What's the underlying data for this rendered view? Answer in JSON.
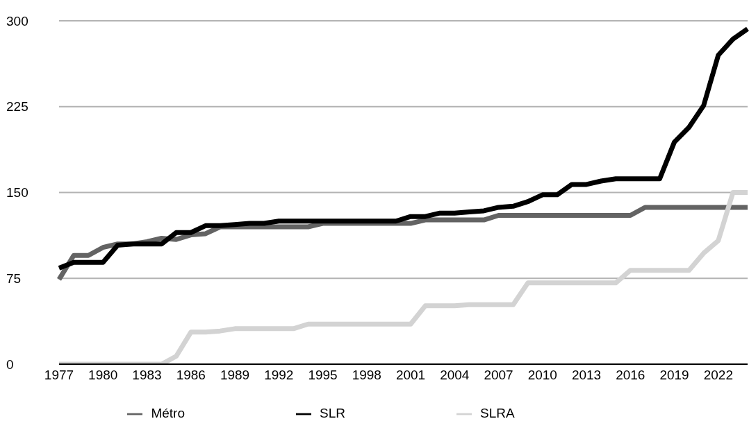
{
  "chart_data": {
    "type": "line",
    "categories": [
      "1977",
      null,
      null,
      "1980",
      null,
      null,
      "1983",
      null,
      null,
      "1986",
      null,
      null,
      "1989",
      null,
      null,
      "1992",
      null,
      null,
      "1995",
      null,
      null,
      "1998",
      null,
      null,
      "2001",
      null,
      null,
      "2004",
      null,
      null,
      "2007",
      null,
      null,
      "2010",
      null,
      null,
      "2013",
      null,
      null,
      "2016",
      null,
      null,
      "2019",
      null,
      null,
      "2022",
      null,
      null
    ],
    "series": [
      {
        "name": "Métro",
        "color": "#636363",
        "values": [
          74,
          95,
          95,
          102,
          105,
          105,
          107,
          110,
          109,
          113,
          114,
          120,
          120,
          120,
          120,
          120,
          120,
          120,
          123,
          123,
          123,
          123,
          123,
          123,
          123,
          126,
          126,
          126,
          126,
          126,
          130,
          130,
          130,
          130,
          130,
          130,
          130,
          130,
          130,
          130,
          137,
          137,
          137,
          137,
          137,
          137,
          137,
          137
        ]
      },
      {
        "name": "SLR",
        "color": "#000000",
        "values": [
          84,
          89,
          89,
          89,
          104,
          105,
          105,
          105,
          115,
          115,
          121,
          121,
          122,
          123,
          123,
          125,
          125,
          125,
          125,
          125,
          125,
          125,
          125,
          125,
          129,
          129,
          132,
          132,
          133,
          134,
          137,
          138,
          142,
          148,
          148,
          157,
          157,
          160,
          162,
          162,
          162,
          162,
          194,
          207,
          226,
          270,
          284,
          293
        ]
      },
      {
        "name": "SLRA",
        "color": "#d3d3d3",
        "values": [
          0,
          0,
          0,
          0,
          0,
          0,
          0,
          0,
          7,
          28,
          28,
          29,
          31,
          31,
          31,
          31,
          31,
          35,
          35,
          35,
          35,
          35,
          35,
          35,
          35,
          51,
          51,
          51,
          52,
          52,
          52,
          52,
          71,
          71,
          71,
          71,
          71,
          71,
          71,
          82,
          82,
          82,
          82,
          82,
          97,
          108,
          150,
          150
        ]
      }
    ],
    "ylim": [
      0,
      300
    ],
    "yticks": [
      0,
      75,
      150,
      225,
      300
    ],
    "grid": "y",
    "legend": "bottom",
    "marker": "none",
    "line_style": "solid"
  }
}
